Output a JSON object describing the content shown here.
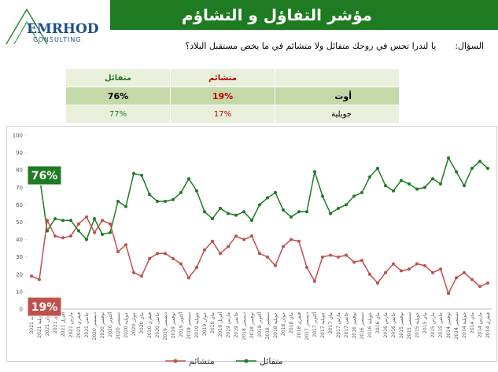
{
  "header": {
    "title": "مؤشر التفاؤل و التشاؤم",
    "logo": "EMRHOD",
    "logo_sub": "CONSULTING"
  },
  "question": {
    "label": "السؤال:",
    "text": "يا لندرا تحس في روحك متفائل ولا متشائم في ما يخص مستقبل البلاد؟"
  },
  "table": {
    "header": [
      "متفائل",
      "متشائم",
      ""
    ],
    "rows": [
      [
        "76%",
        "19%",
        "أوت"
      ],
      [
        "77%",
        "17%",
        "جويلية"
      ]
    ]
  },
  "chart_data": {
    "type": "line",
    "categories": [
      "أوت 2021",
      "جويلية 2021",
      "جوان 2021",
      "ماي 2021",
      "أفريل 2021",
      "مارس 2021",
      "فيفري 2021",
      "جانفي 2021",
      "ديسمبر 2020",
      "نوفمبر 2020",
      "أكتوبر 2020",
      "سبتمبر 2020",
      "جويلية 2020",
      "جوان 2020",
      "ماي 2020",
      "فيفري 2020",
      "جانفي 2020",
      "ديسمبر 2019",
      "نوفمبر 2019",
      "أكتوبر 2019",
      "سبتمبر 2019",
      "جويلية 2019",
      "جوان 2019",
      "ماي 2019",
      "أفريل 2019",
      "مارس 2019",
      "جانفي 2019",
      "ديسمبر 2018",
      "نوفمبر 2018",
      "أكتوبر 2018",
      "سبتمبر 2018",
      "جويلية 2018",
      "جوان 2018",
      "ماي 2018",
      "فيفري 2018",
      "ديسمبر 2017",
      "أكتوبر 2017",
      "جويلية 2017",
      "ماي 2017",
      "مارس 2017",
      "جانفي 2017",
      "نوفمبر 2016",
      "سبتمبر 2016",
      "جويلية 2016",
      "ماي 2016",
      "مارس 2016",
      "جانفي 2016",
      "نوفمبر 2015",
      "سبتمبر 2015",
      "جويلية 2015",
      "ماي 2015",
      "مارس 2015",
      "جانفي 2015",
      "نوفمبر 2014",
      "سبتمبر 2014",
      "جويلية 2014",
      "ماي 2014",
      "مارس 2014",
      "فيفري 2014"
    ],
    "series": [
      {
        "name": "متفائل",
        "color": "#1e7b22",
        "values": [
          76,
          77,
          45,
          52,
          51,
          51,
          45,
          40,
          52,
          43,
          44,
          62,
          59,
          78,
          77,
          66,
          62,
          62,
          63,
          67,
          75,
          68,
          56,
          52,
          58,
          55,
          54,
          56,
          51,
          60,
          64,
          67,
          57,
          53,
          56,
          56,
          79,
          65,
          55,
          58,
          60,
          65,
          67,
          76,
          81,
          71,
          68,
          74,
          72,
          69,
          70,
          75,
          72,
          87,
          79,
          71,
          81,
          85,
          81
        ]
      },
      {
        "name": "متشائم",
        "color": "#c0504d",
        "values": [
          19,
          17,
          51,
          42,
          41,
          42,
          49,
          53,
          44,
          51,
          49,
          33,
          37,
          21,
          19,
          29,
          32,
          32,
          29,
          26,
          18,
          24,
          34,
          39,
          32,
          36,
          42,
          40,
          42,
          32,
          30,
          25,
          36,
          40,
          39,
          24,
          16,
          30,
          31,
          30,
          31,
          27,
          28,
          20,
          15,
          21,
          26,
          22,
          23,
          26,
          25,
          21,
          23,
          9,
          18,
          21,
          17,
          13,
          15
        ]
      }
    ],
    "annotations": [
      "76%",
      "19%"
    ],
    "ylim": [
      0,
      100
    ],
    "yticks": [
      0,
      10,
      20,
      30,
      40,
      50,
      60,
      70,
      80,
      90,
      100
    ],
    "grid": false,
    "legend": "bottom"
  }
}
